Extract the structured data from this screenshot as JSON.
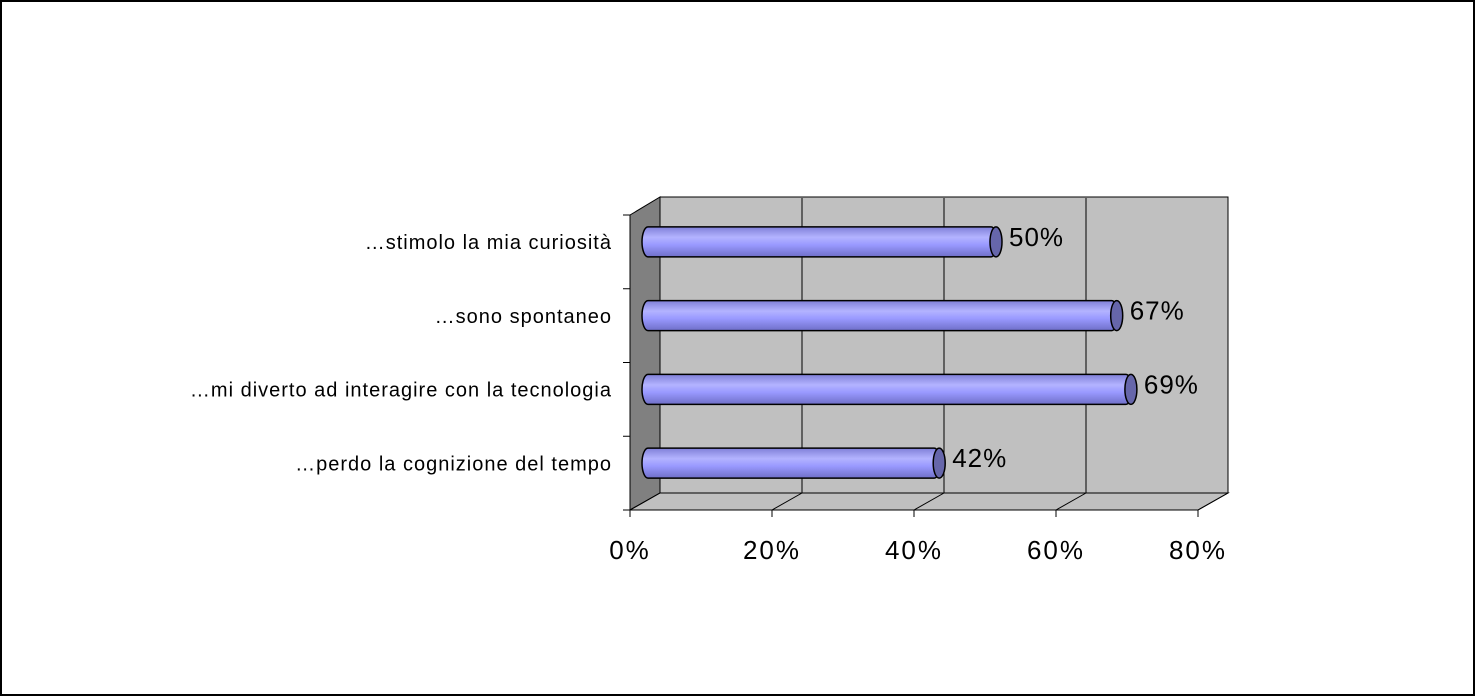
{
  "chart_data": {
    "type": "bar",
    "orientation": "horizontal",
    "categories": [
      "…stimolo la mia curiosità",
      "…sono spontaneo",
      "…mi diverto ad interagire con la tecnologia",
      "…perdo la cognizione del tempo"
    ],
    "values": [
      50,
      67,
      69,
      42
    ],
    "value_labels": [
      "50%",
      "67%",
      "69%",
      "42%"
    ],
    "color": "#9999ff",
    "xlim": [
      0,
      80
    ],
    "xticks": [
      {
        "value": 0,
        "label": "0%"
      },
      {
        "value": 20,
        "label": "20%"
      },
      {
        "value": 40,
        "label": "40%"
      },
      {
        "value": 60,
        "label": "60%"
      },
      {
        "value": 80,
        "label": "80%"
      }
    ],
    "grid": true
  }
}
